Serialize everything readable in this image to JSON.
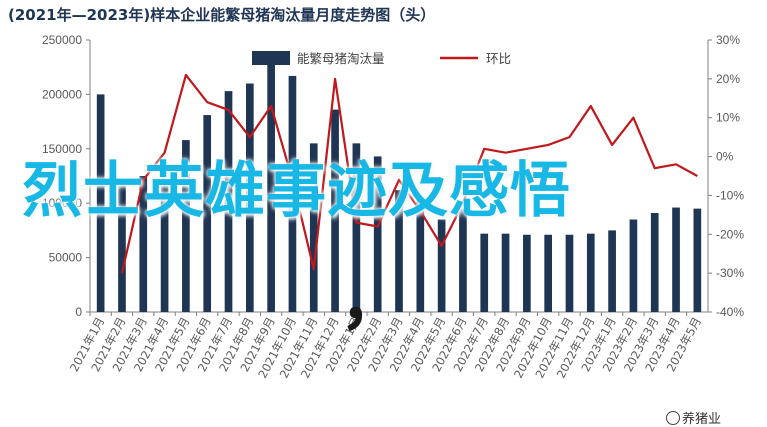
{
  "chart_data": {
    "type": "bar+line",
    "title": "(2021年—2023年)样本企业能繁母猪淘汰量月度走势图（头）",
    "categories": [
      "2021年1月",
      "2021年2月",
      "2021年3月",
      "2021年4月",
      "2021年5月",
      "2021年6月",
      "2021年7月",
      "2021年8月",
      "2021年9月",
      "2021年10月",
      "2021年11月",
      "2021年12月",
      "2022年1月",
      "2022年2月",
      "2022年3月",
      "2022年4月",
      "2022年5月",
      "2022年6月",
      "2022年7月",
      "2022年8月",
      "2022年9月",
      "2022年10月",
      "2022年11月",
      "2022年12月",
      "2023年1月",
      "2023年2月",
      "2023年3月",
      "2023年4月",
      "2023年5月"
    ],
    "series": [
      {
        "name": "能繁母猪淘汰量",
        "axis": "left",
        "values": [
          200000,
          118000,
          125000,
          122000,
          158000,
          181000,
          203000,
          210000,
          230000,
          217000,
          155000,
          186000,
          155000,
          143000,
          112000,
          103000,
          85000,
          95000,
          72000,
          72000,
          71000,
          71000,
          71000,
          72000,
          75000,
          85000,
          91000,
          96000,
          95000
        ]
      },
      {
        "name": "环比",
        "axis": "right",
        "unit": "%",
        "values": [
          null,
          -30,
          -6,
          1,
          21,
          14,
          12,
          5,
          13,
          -6,
          -29,
          20,
          -17,
          -18,
          -6,
          -14,
          -23,
          -12,
          2,
          1,
          2,
          3,
          5,
          13,
          3,
          10,
          -3,
          -2,
          -5
        ]
      }
    ],
    "y_left": {
      "min": 0,
      "max": 250000,
      "ticks": [
        "0",
        "50000",
        "100000",
        "150000",
        "200000",
        "250000"
      ]
    },
    "y_right": {
      "min": -40,
      "max": 30,
      "ticks": [
        "-40%",
        "-30%",
        "-20%",
        "-10%",
        "0%",
        "10%",
        "20%",
        "30%"
      ]
    },
    "colors": {
      "bar": "#1f3554",
      "line": "#c0181b",
      "axis": "#7f7f7f",
      "title": "#1f3554",
      "overlay": "#17b7e6"
    },
    "legend_position": "top-center",
    "grid": false
  },
  "overlay_text": "烈士英雄事迹及感悟",
  "overlay_comma": "，",
  "watermark": "养猪业"
}
